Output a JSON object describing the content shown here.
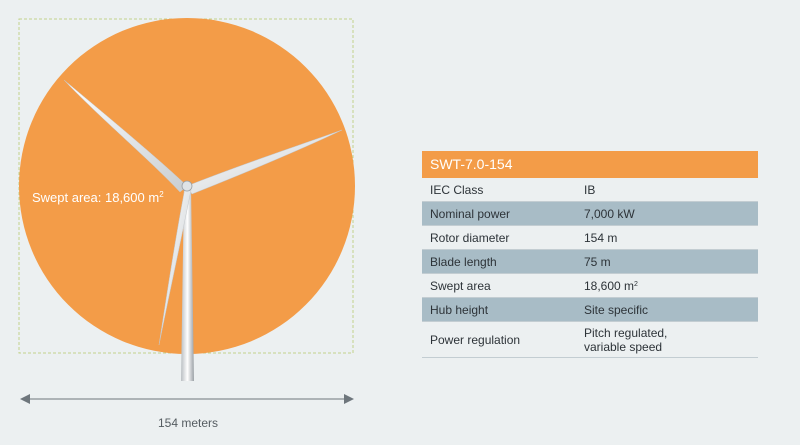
{
  "illustration": {
    "swept_label": "Swept area: 18,600 m",
    "swept_label_sup": "2",
    "dimension_label": "154 meters"
  },
  "spec": {
    "title": "SWT-7.0-154",
    "rows": [
      {
        "label": "IEC Class",
        "value": "IB"
      },
      {
        "label": "Nominal power",
        "value": "7,000 kW"
      },
      {
        "label": "Rotor diameter",
        "value": "154 m"
      },
      {
        "label": "Blade length",
        "value": "75 m"
      },
      {
        "label": "Swept area",
        "value": "18,600 m",
        "value_sup": "2"
      },
      {
        "label": "Hub height",
        "value": "Site specific"
      },
      {
        "label": "Power regulation",
        "value": "Pitch regulated,",
        "value_line2": "variable speed"
      }
    ]
  },
  "colors": {
    "swept_area": "#f39c48",
    "header": "#f39c48",
    "shaded_row": "#a8bcc6",
    "background": "#ecf0f1"
  },
  "icons": {
    "dimension_arrow": "double-headed-arrow-icon"
  }
}
